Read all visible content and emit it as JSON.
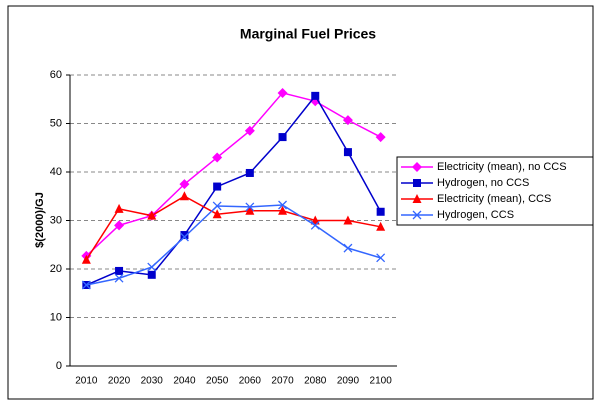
{
  "chart_data": {
    "type": "line",
    "title": "Marginal Fuel Prices",
    "y_label": "$(2000)/GJ",
    "categories": [
      "2010",
      "2020",
      "2030",
      "2040",
      "2050",
      "2060",
      "2070",
      "2080",
      "2090",
      "2100"
    ],
    "series": [
      {
        "name": "Electricity (mean), no CCS",
        "color": "#ff00ff",
        "marker": "diamond",
        "values": [
          22.7,
          29,
          31,
          37.5,
          43,
          48.5,
          56.3,
          54.6,
          50.7,
          47.2
        ]
      },
      {
        "name": "Hydrogen, no CCS",
        "color": "#0000cc",
        "marker": "square",
        "values": [
          16.7,
          19.6,
          18.8,
          27,
          37,
          39.8,
          47.2,
          55.7,
          44.1,
          31.8
        ]
      },
      {
        "name": "Electricity (mean), CCS",
        "color": "#ff0000",
        "marker": "triangle",
        "values": [
          21.9,
          32.4,
          31,
          35,
          31.3,
          32,
          32,
          30,
          30,
          28.7
        ]
      },
      {
        "name": "Hydrogen, CCS",
        "color": "#3366ff",
        "marker": "x",
        "values": [
          16.7,
          18.1,
          20.4,
          26.6,
          33,
          32.8,
          33.2,
          29,
          24.3,
          22.3
        ]
      }
    ],
    "ylim": [
      0,
      60
    ],
    "yticks": [
      0,
      10,
      20,
      30,
      40,
      50,
      60
    ],
    "grid": true,
    "legend": "right"
  }
}
